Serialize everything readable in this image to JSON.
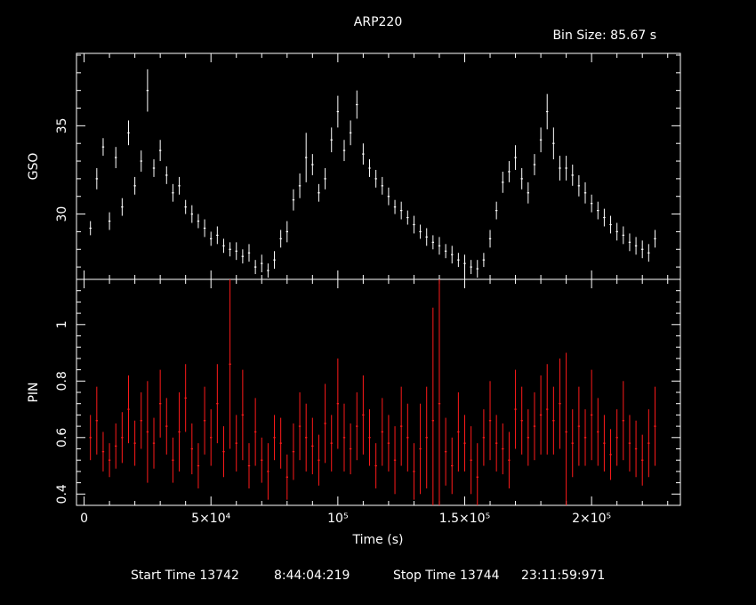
{
  "chart_data": {
    "type": "scatter",
    "title": "ARP220",
    "subtitle": "Bin Size: 85.67 s",
    "xlabel": "Time (s)",
    "xlim": [
      -3000,
      235000
    ],
    "x_ticks": [
      {
        "value": 0,
        "label": "0"
      },
      {
        "value": 50000,
        "label": "5×10⁴"
      },
      {
        "value": 100000,
        "label": "10⁵"
      },
      {
        "value": 150000,
        "label": "1.5×10⁵"
      },
      {
        "value": 200000,
        "label": "2×10⁵"
      }
    ],
    "panels": [
      {
        "name": "GSO",
        "ylabel": "GSO",
        "color": "#ffffff",
        "ylim": [
          26.3,
          39.1
        ],
        "y_ticks": [
          {
            "value": 30,
            "label": "30"
          },
          {
            "value": 35,
            "label": "35"
          }
        ],
        "x": [
          2500,
          5000,
          7500,
          10000,
          12500,
          15000,
          17500,
          20000,
          22500,
          25000,
          27500,
          30000,
          32500,
          35000,
          37500,
          40000,
          42500,
          45000,
          47500,
          50000,
          52500,
          55000,
          57500,
          60000,
          62500,
          65000,
          67500,
          70000,
          72500,
          75000,
          77500,
          80000,
          82500,
          85000,
          87500,
          90000,
          92500,
          95000,
          97500,
          100000,
          102500,
          105000,
          107500,
          110000,
          112500,
          115000,
          117500,
          120000,
          122500,
          125000,
          127500,
          130000,
          132500,
          135000,
          137500,
          140000,
          142500,
          145000,
          147500,
          150000,
          152500,
          155000,
          157500,
          160000,
          162500,
          165000,
          167500,
          170000,
          172500,
          175000,
          177500,
          180000,
          182500,
          185000,
          187500,
          190000,
          192500,
          195000,
          197500,
          200000,
          202500,
          205000,
          207500,
          210000,
          212500,
          215000,
          217500,
          220000,
          222500,
          225000
        ],
        "y": [
          29.2,
          32.0,
          33.8,
          29.6,
          33.2,
          30.4,
          34.6,
          31.6,
          33.0,
          37.0,
          32.6,
          33.6,
          32.2,
          31.2,
          31.6,
          30.4,
          30.0,
          29.6,
          29.2,
          28.6,
          28.8,
          28.2,
          28.0,
          27.9,
          27.6,
          27.8,
          27.0,
          27.2,
          26.8,
          27.4,
          28.6,
          29.0,
          30.8,
          31.6,
          33.2,
          32.8,
          31.2,
          32.0,
          34.2,
          35.8,
          33.6,
          34.6,
          36.2,
          33.4,
          32.6,
          32.0,
          31.6,
          31.0,
          30.4,
          30.2,
          29.8,
          29.4,
          29.0,
          28.7,
          28.4,
          28.2,
          27.9,
          27.7,
          27.4,
          27.2,
          27.0,
          26.9,
          27.4,
          28.6,
          30.2,
          31.8,
          32.4,
          33.2,
          32.0,
          31.2,
          32.8,
          34.2,
          35.8,
          34.0,
          32.6,
          32.6,
          32.2,
          31.6,
          31.2,
          30.6,
          30.2,
          29.8,
          29.4,
          29.0,
          28.8,
          28.4,
          28.2,
          28.0,
          27.8,
          28.6
        ],
        "err": [
          0.4,
          0.6,
          0.5,
          0.5,
          0.6,
          0.5,
          0.7,
          0.5,
          0.6,
          1.2,
          0.5,
          0.6,
          0.5,
          0.5,
          0.5,
          0.4,
          0.5,
          0.4,
          0.5,
          0.4,
          0.5,
          0.4,
          0.4,
          0.5,
          0.4,
          0.5,
          0.4,
          0.5,
          0.4,
          0.5,
          0.5,
          0.6,
          0.6,
          0.7,
          1.4,
          0.6,
          0.5,
          0.6,
          0.7,
          0.9,
          0.6,
          0.7,
          0.8,
          0.6,
          0.5,
          0.5,
          0.5,
          0.5,
          0.4,
          0.5,
          0.4,
          0.5,
          0.4,
          0.5,
          0.4,
          0.5,
          0.4,
          0.5,
          0.4,
          0.5,
          0.4,
          0.5,
          0.4,
          0.5,
          0.5,
          0.6,
          0.6,
          0.7,
          0.6,
          0.6,
          0.6,
          0.7,
          1.0,
          0.9,
          0.7,
          0.7,
          0.6,
          0.6,
          0.6,
          0.5,
          0.5,
          0.5,
          0.5,
          0.5,
          0.5,
          0.5,
          0.5,
          0.5,
          0.5,
          0.5
        ]
      },
      {
        "name": "PIN",
        "ylabel": "PIN",
        "color": "#ff1a1a",
        "ylim": [
          0.36,
          1.16
        ],
        "y_ticks": [
          {
            "value": 0.4,
            "label": "0.4"
          },
          {
            "value": 0.6,
            "label": "0.6"
          },
          {
            "value": 0.8,
            "label": "0.8"
          },
          {
            "value": 1.0,
            "label": "1"
          }
        ],
        "x": [
          2500,
          5000,
          7500,
          10000,
          12500,
          15000,
          17500,
          20000,
          22500,
          25000,
          27500,
          30000,
          32500,
          35000,
          37500,
          40000,
          42500,
          45000,
          47500,
          50000,
          52500,
          55000,
          57500,
          60000,
          62500,
          65000,
          67500,
          70000,
          72500,
          75000,
          77500,
          80000,
          82500,
          85000,
          87500,
          90000,
          92500,
          95000,
          97500,
          100000,
          102500,
          105000,
          107500,
          110000,
          112500,
          115000,
          117500,
          120000,
          122500,
          125000,
          127500,
          130000,
          132500,
          135000,
          137500,
          140000,
          142500,
          145000,
          147500,
          150000,
          152500,
          155000,
          157500,
          160000,
          162500,
          165000,
          167500,
          170000,
          172500,
          175000,
          177500,
          180000,
          182500,
          185000,
          187500,
          190000,
          192500,
          195000,
          197500,
          200000,
          202500,
          205000,
          207500,
          210000,
          212500,
          215000,
          217500,
          220000,
          222500,
          225000
        ],
        "y": [
          0.6,
          0.66,
          0.55,
          0.52,
          0.57,
          0.6,
          0.7,
          0.58,
          0.66,
          0.62,
          0.58,
          0.72,
          0.64,
          0.52,
          0.62,
          0.74,
          0.56,
          0.5,
          0.66,
          0.6,
          0.72,
          0.55,
          0.86,
          0.58,
          0.68,
          0.5,
          0.62,
          0.52,
          0.48,
          0.6,
          0.58,
          0.46,
          0.55,
          0.64,
          0.6,
          0.57,
          0.52,
          0.65,
          0.58,
          0.72,
          0.6,
          0.56,
          0.64,
          0.68,
          0.6,
          0.5,
          0.62,
          0.58,
          0.52,
          0.64,
          0.6,
          0.48,
          0.56,
          0.6,
          0.66,
          0.72,
          0.55,
          0.5,
          0.62,
          0.58,
          0.52,
          0.46,
          0.6,
          0.66,
          0.58,
          0.56,
          0.52,
          0.7,
          0.66,
          0.6,
          0.64,
          0.68,
          0.7,
          0.66,
          0.72,
          0.62,
          0.58,
          0.64,
          0.6,
          0.68,
          0.62,
          0.58,
          0.54,
          0.6,
          0.66,
          0.58,
          0.56,
          0.52,
          0.58,
          0.64
        ],
        "err": [
          0.08,
          0.12,
          0.07,
          0.06,
          0.08,
          0.09,
          0.12,
          0.08,
          0.1,
          0.18,
          0.09,
          0.12,
          0.1,
          0.08,
          0.14,
          0.12,
          0.09,
          0.08,
          0.12,
          0.1,
          0.14,
          0.09,
          0.3,
          0.1,
          0.16,
          0.08,
          0.12,
          0.08,
          0.1,
          0.08,
          0.09,
          0.08,
          0.1,
          0.12,
          0.12,
          0.1,
          0.09,
          0.14,
          0.1,
          0.16,
          0.12,
          0.09,
          0.12,
          0.14,
          0.1,
          0.08,
          0.12,
          0.1,
          0.12,
          0.14,
          0.12,
          0.1,
          0.16,
          0.18,
          0.4,
          0.44,
          0.12,
          0.1,
          0.14,
          0.1,
          0.12,
          0.12,
          0.1,
          0.14,
          0.1,
          0.09,
          0.1,
          0.14,
          0.12,
          0.1,
          0.12,
          0.14,
          0.16,
          0.12,
          0.16,
          0.28,
          0.12,
          0.14,
          0.1,
          0.16,
          0.12,
          0.1,
          0.09,
          0.1,
          0.14,
          0.1,
          0.1,
          0.09,
          0.12,
          0.14
        ]
      }
    ],
    "footer": {
      "start_label": "Start Time 13742",
      "start_time": "8:44:04:219",
      "stop_label": "Stop Time 13744",
      "stop_time": "23:11:59:971"
    },
    "grid": false,
    "legend": "none"
  }
}
